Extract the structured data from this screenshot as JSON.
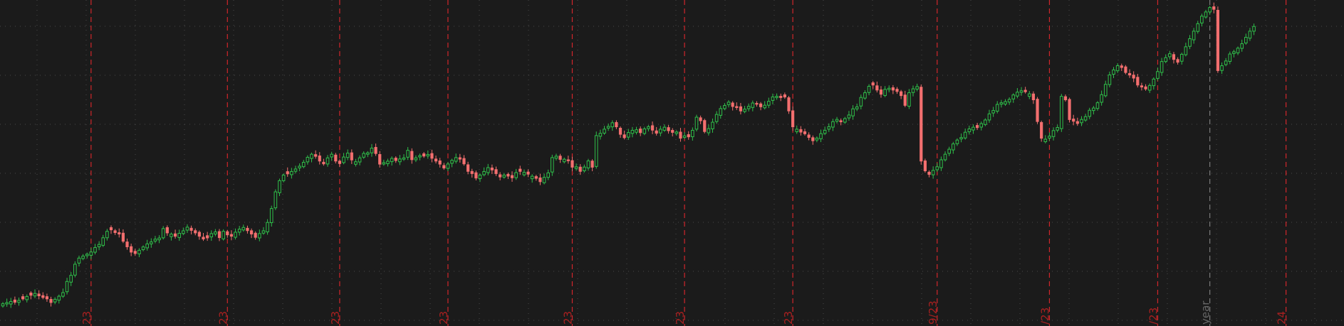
{
  "chart_data": {
    "type": "candlestick",
    "grid": true,
    "colors": {
      "background": "#1b1b1b",
      "grid": "#4a4a4a",
      "up": "#2fbf4a",
      "down": "#f36f6f",
      "event_line": "#d0262b",
      "year_line": "#7a7a7a",
      "label": "#a82020",
      "year_label": "#666666"
    },
    "event_markers": [
      {
        "label": "23",
        "index": 22
      },
      {
        "label": "23",
        "index": 56
      },
      {
        "label": "23",
        "index": 84
      },
      {
        "label": "23",
        "index": 111
      },
      {
        "label": "23",
        "index": 142
      },
      {
        "label": "23",
        "index": 170
      },
      {
        "label": "23",
        "index": 197
      },
      {
        "label": "9/23",
        "index": 233
      },
      {
        "label": "/23",
        "index": 261
      },
      {
        "label": "/23",
        "index": 288
      },
      {
        "label": "24",
        "index": 320
      }
    ],
    "year_marker": {
      "label": "year",
      "index": 301
    },
    "close": [
      10.8,
      11.2,
      11.6,
      11.3,
      12.0,
      12.5,
      13.4,
      13.8,
      14.5,
      13.6,
      13.0,
      12.5,
      11.2,
      12.4,
      13.5,
      14.8,
      18.8,
      21.0,
      25.0,
      27.2,
      27.9,
      28.6,
      29.4,
      31.0,
      32.1,
      34.5,
      36.8,
      37.3,
      36.3,
      35.8,
      33.2,
      31.2,
      29.3,
      28.8,
      30.0,
      31.2,
      32.3,
      33.0,
      34.0,
      34.4,
      37.8,
      36.2,
      35.8,
      35.0,
      36.1,
      37.0,
      38.3,
      37.1,
      36.2,
      35.0,
      34.0,
      34.4,
      36.0,
      36.6,
      34.5,
      36.8,
      35.5,
      35.0,
      36.5,
      37.6,
      38.2,
      37.0,
      35.8,
      34.6,
      36.0,
      37.0,
      40.0,
      45.0,
      51.0,
      55.0,
      57.0,
      57.4,
      58.3,
      59.2,
      60.2,
      61.6,
      63.4,
      64.5,
      63.7,
      62.0,
      61.0,
      63.2,
      64.5,
      62.0,
      61.1,
      63.5,
      64.9,
      62.4,
      61.8,
      63.2,
      64.8,
      65.0,
      66.7,
      64.7,
      60.9,
      61.5,
      62.0,
      63.0,
      62.2,
      62.8,
      63.2,
      65.9,
      62.5,
      63.2,
      64.0,
      63.8,
      64.4,
      63.0,
      62.0,
      60.9,
      59.5,
      61.0,
      62.3,
      63.3,
      62.7,
      61.0,
      58.3,
      57.5,
      55.9,
      57.0,
      58.3,
      59.7,
      58.8,
      57.5,
      56.3,
      57.0,
      56.6,
      56.0,
      57.9,
      58.3,
      58.0,
      57.3,
      56.6,
      55.8,
      54.6,
      56.2,
      57.8,
      63.3,
      63.8,
      62.6,
      62.7,
      62.1,
      59.8,
      60.0,
      58.3,
      59.9,
      62.1,
      59.8,
      71.2,
      72.0,
      73.5,
      74.5,
      75.8,
      74.3,
      71.6,
      70.4,
      72.3,
      73.1,
      73.3,
      72.2,
      73.6,
      74.4,
      73.1,
      72.0,
      73.5,
      74.2,
      72.9,
      72.3,
      72.5,
      70.2,
      71.1,
      70.7,
      73.1,
      77.8,
      76.5,
      72.6,
      73.7,
      76.0,
      78.8,
      80.9,
      82.0,
      83.2,
      81.6,
      81.2,
      80.0,
      80.7,
      81.7,
      82.9,
      82.4,
      81.5,
      82.1,
      83.5,
      85.1,
      85.3,
      84.8,
      85.0,
      80.0,
      74.3,
      73.5,
      72.4,
      71.8,
      70.5,
      69.3,
      70.3,
      71.9,
      73.1,
      74.4,
      76.2,
      77.0,
      76.1,
      77.3,
      78.6,
      80.8,
      81.5,
      84.9,
      86.6,
      88.9,
      89.3,
      87.5,
      86.0,
      87.8,
      88.2,
      87.5,
      87.0,
      85.5,
      82.0,
      86.6,
      88.0,
      88.8,
      62.0,
      58.5,
      57.2,
      58.7,
      60.0,
      62.5,
      64.5,
      66.3,
      68.2,
      69.6,
      70.5,
      72.4,
      73.6,
      74.2,
      74.0,
      75.5,
      76.8,
      79.0,
      80.2,
      82.4,
      83.0,
      83.4,
      84.2,
      85.8,
      86.8,
      87.3,
      86.9,
      86.2,
      84.0,
      76.2,
      70.2,
      69.9,
      71.0,
      73.0,
      74.1,
      85.3,
      84.0,
      76.9,
      76.3,
      75.5,
      77.0,
      78.0,
      80.3,
      81.1,
      83.0,
      85.9,
      89.6,
      93.0,
      94.8,
      96.3,
      95.6,
      93.8,
      92.9,
      91.8,
      89.3,
      88.6,
      87.9,
      89.2,
      91.5,
      94.2,
      97.8,
      99.2,
      100.6,
      98.5,
      97.5,
      100.4,
      103.1,
      106.0,
      108.7,
      111.4,
      114.1,
      115.6,
      117.2,
      116.5,
      94.5,
      96.3,
      98.0,
      100.5,
      101.3,
      102.6,
      104.2,
      106.5,
      108.7,
      110.4
    ]
  },
  "bottom_labels": {
    "event_label": "23",
    "year_label": "year"
  }
}
